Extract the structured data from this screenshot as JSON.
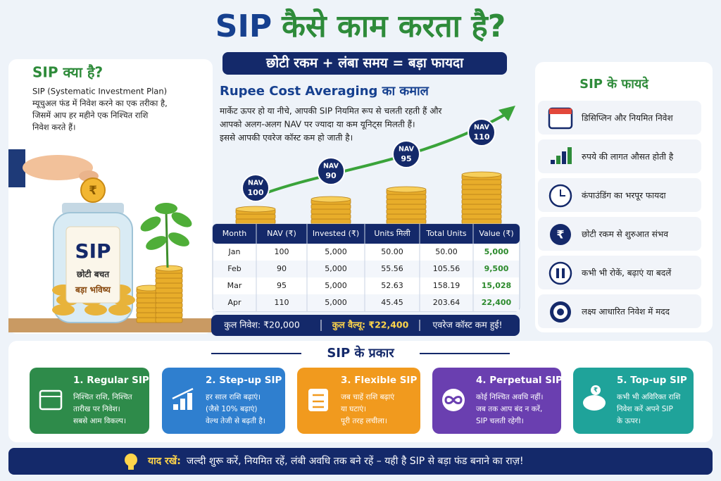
{
  "header": {
    "title_highlight": "SIP",
    "title_rest": "कैसे काम करता है?",
    "tagline": "छोटी रकम + लंबा समय = बड़ा फायदा"
  },
  "what_is": {
    "heading": "SIP क्या है?",
    "lines": [
      "SIP (Systematic Investment Plan)",
      "म्यूचुअल फंड में निवेश करने का एक तरीका है,",
      "जिसमें आप हर महीने एक निश्चित राशि",
      "निवेश करते हैं।"
    ],
    "jar_label": [
      "SIP",
      "छोटी बचत",
      "बड़ा भविष्य"
    ],
    "coin_symbol": "₹"
  },
  "rca": {
    "heading": "Rupee Cost Averaging का कमाल",
    "lines": [
      "मार्केट ऊपर हो या नीचे, आपकी SIP नियमित रूप से चलती रहती हैं और",
      "आपको अलग-अलग NAV पर ज्यादा या कम यूनिट्स मिलती हैं।",
      "इससे आपकी एवरेज कॉस्ट कम हो जाती है।"
    ],
    "badges": [
      [
        "NAV",
        "100"
      ],
      [
        "NAV",
        "90"
      ],
      [
        "NAV",
        "95"
      ],
      [
        "NAV",
        "110"
      ]
    ]
  },
  "table": {
    "columns": [
      "Month",
      "NAV (₹)",
      "Invested (₹)",
      "Units मिली",
      "Total Units",
      "Value (₹)"
    ],
    "rows": [
      [
        "Jan",
        "100",
        "5,000",
        "50.00",
        "50.00",
        "5,000"
      ],
      [
        "Feb",
        "90",
        "5,000",
        "55.56",
        "105.56",
        "9,500"
      ],
      [
        "Mar",
        "95",
        "5,000",
        "52.63",
        "158.19",
        "15,028"
      ],
      [
        "Apr",
        "110",
        "5,000",
        "45.45",
        "203.64",
        "22,400"
      ]
    ]
  },
  "summary": [
    "कुल निवेश: ₹20,000",
    "कुल वैल्यू: ₹22,400",
    "एवरेज कॉस्ट कम हुई!"
  ],
  "benefits": {
    "heading": "SIP के फायदे",
    "items": [
      "डिसिप्लिन और नियमित निवेश",
      "रुपये की लागत औसत होती है",
      "कंपाउंडिंग का भरपूर फायदा",
      "छोटी रकम से शुरुआत संभव",
      "कभी भी रोकें, बढ़ाएं या बदलें",
      "लक्ष्य आधारित निवेश में मदद"
    ]
  },
  "types": {
    "heading": "SIP के प्रकार",
    "cards": [
      {
        "title": "1. Regular SIP",
        "lines": [
          "निश्चित राशि, निश्चित",
          "तारीख पर निवेश।",
          "सबसे आम विकल्प।"
        ]
      },
      {
        "title": "2. Step-up SIP",
        "lines": [
          "हर साल राशि बढ़ाएं।",
          "(जैसे 10% बढ़ाएं)",
          "वेल्थ तेजी से बढ़ती है।"
        ]
      },
      {
        "title": "3. Flexible SIP",
        "lines": [
          "जब चाहें राशि बढ़ाएं",
          "या घटाएं।",
          "पूरी तरह लचीला।"
        ]
      },
      {
        "title": "4. Perpetual SIP",
        "lines": [
          "कोई निश्चित अवधि नहीं।",
          "जब तक आप बंद न करें,",
          "SIP चलती रहेगी।"
        ]
      },
      {
        "title": "5. Top-up SIP",
        "lines": [
          "कभी भी अविरिक्त राशि",
          "निवेश करें अपने SIP",
          "के ऊपर।"
        ]
      }
    ]
  },
  "footer": {
    "label": "याद रखें:",
    "text": "जल्दी शुरू करें, नियमित रहें, लंबी अवधि तक बने रहें – यही है SIP से बड़ा फंड बनाने का राज़!"
  }
}
